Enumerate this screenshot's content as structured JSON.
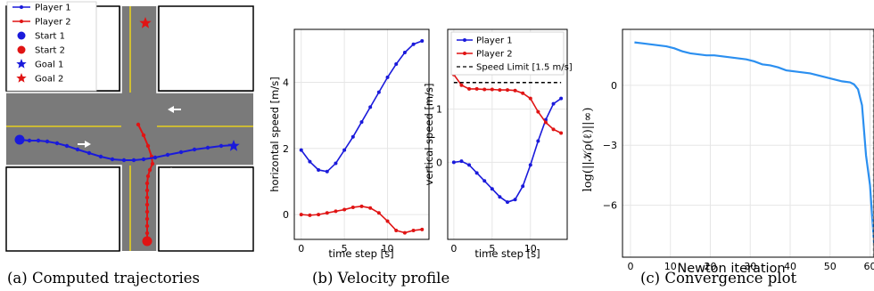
{
  "captions": [
    "(a) Computed trajectories",
    "(b) Velocity profile",
    "(c) Convergence plot"
  ],
  "colors": {
    "player1": "#1a1adb",
    "player2": "#e01414",
    "convergence": "#2b8ff0",
    "road": "#7a7a7a",
    "lane_yellow": "#e6cf1f"
  },
  "icons": {
    "start_marker": "filled-circle",
    "goal_marker": "star",
    "flow_arrow": "arrow"
  },
  "chart_data": [
    {
      "type": "scatter",
      "subtype": "trajectory-map",
      "legend": [
        {
          "label": "Player 1",
          "marker": "line-dot",
          "color": "#1a1adb"
        },
        {
          "label": "Player 2",
          "marker": "line-dot",
          "color": "#e01414"
        },
        {
          "label": "Start 1",
          "marker": "circle",
          "color": "#1a1adb"
        },
        {
          "label": "Start 2",
          "marker": "circle",
          "color": "#e01414"
        },
        {
          "label": "Goal 1",
          "marker": "star",
          "color": "#1a1adb"
        },
        {
          "label": "Goal 2",
          "marker": "star",
          "color": "#e01414"
        }
      ],
      "legend_position": "top-left"
    },
    {
      "type": "line",
      "xlabel": "time step [s]",
      "ylabel": "horizontal speed [m/s]",
      "xlim": [
        -0.8,
        14.8
      ],
      "ylim": [
        -0.75,
        5.6
      ],
      "xticks": [
        0,
        5,
        10
      ],
      "yticks": [
        0,
        2,
        4
      ],
      "grid": true,
      "x": [
        0,
        1,
        2,
        3,
        4,
        5,
        6,
        7,
        8,
        9,
        10,
        11,
        12,
        13,
        14
      ],
      "series": [
        {
          "name": "Player 1",
          "color": "#1a1adb",
          "values": [
            1.95,
            1.6,
            1.35,
            1.3,
            1.55,
            1.95,
            2.35,
            2.8,
            3.25,
            3.7,
            4.15,
            4.55,
            4.9,
            5.15,
            5.25
          ]
        },
        {
          "name": "Player 2",
          "color": "#e01414",
          "values": [
            0.0,
            -0.02,
            0.0,
            0.05,
            0.1,
            0.15,
            0.22,
            0.25,
            0.2,
            0.05,
            -0.2,
            -0.48,
            -0.55,
            -0.48,
            -0.45
          ]
        }
      ]
    },
    {
      "type": "line",
      "xlabel": "time step [s]",
      "ylabel": "vertical speed [m/s]",
      "xlim": [
        -0.8,
        14.8
      ],
      "ylim": [
        -1.45,
        2.5
      ],
      "xticks": [
        0,
        5,
        10
      ],
      "yticks": [
        0,
        1
      ],
      "grid": true,
      "legend_position": "top",
      "x": [
        0,
        1,
        2,
        3,
        4,
        5,
        6,
        7,
        8,
        9,
        10,
        11,
        12,
        13,
        14
      ],
      "series": [
        {
          "name": "Player 1",
          "color": "#1a1adb",
          "values": [
            0.0,
            0.02,
            -0.05,
            -0.2,
            -0.35,
            -0.5,
            -0.65,
            -0.75,
            -0.7,
            -0.45,
            -0.05,
            0.4,
            0.8,
            1.1,
            1.2
          ]
        },
        {
          "name": "Player 2",
          "color": "#e01414",
          "values": [
            1.65,
            1.45,
            1.38,
            1.38,
            1.37,
            1.37,
            1.36,
            1.36,
            1.35,
            1.3,
            1.2,
            0.95,
            0.75,
            0.62,
            0.55
          ]
        },
        {
          "name": "Speed Limit [1.5 m/s]",
          "color": "#000000",
          "dash": true,
          "values": [
            1.5,
            1.5,
            1.5,
            1.5,
            1.5,
            1.5,
            1.5,
            1.5,
            1.5,
            1.5,
            1.5,
            1.5,
            1.5,
            1.5,
            1.5
          ]
        }
      ]
    },
    {
      "type": "line",
      "xlabel": "Newton iteration",
      "ylabel": "log(||𝒦ρ(ℓ)||∞)",
      "xlim": [
        -2,
        61
      ],
      "ylim": [
        -8.6,
        2.8
      ],
      "xticks": [
        0,
        10,
        20,
        30,
        40,
        50,
        60
      ],
      "yticks": [
        -6,
        -3,
        0
      ],
      "grid": true,
      "x": [
        1,
        3,
        5,
        7,
        9,
        11,
        13,
        15,
        17,
        19,
        21,
        23,
        25,
        27,
        29,
        31,
        33,
        35,
        37,
        39,
        41,
        43,
        45,
        47,
        49,
        51,
        53,
        55,
        56,
        57,
        58,
        59,
        60,
        61
      ],
      "series": [
        {
          "name": "",
          "color": "#2b8ff0",
          "values": [
            2.15,
            2.1,
            2.05,
            2.0,
            1.95,
            1.85,
            1.7,
            1.6,
            1.55,
            1.5,
            1.5,
            1.45,
            1.4,
            1.35,
            1.3,
            1.2,
            1.05,
            1.0,
            0.9,
            0.75,
            0.7,
            0.65,
            0.6,
            0.5,
            0.4,
            0.3,
            0.2,
            0.15,
            0.05,
            -0.2,
            -1.0,
            -3.5,
            -5.0,
            -7.9
          ]
        }
      ]
    }
  ]
}
